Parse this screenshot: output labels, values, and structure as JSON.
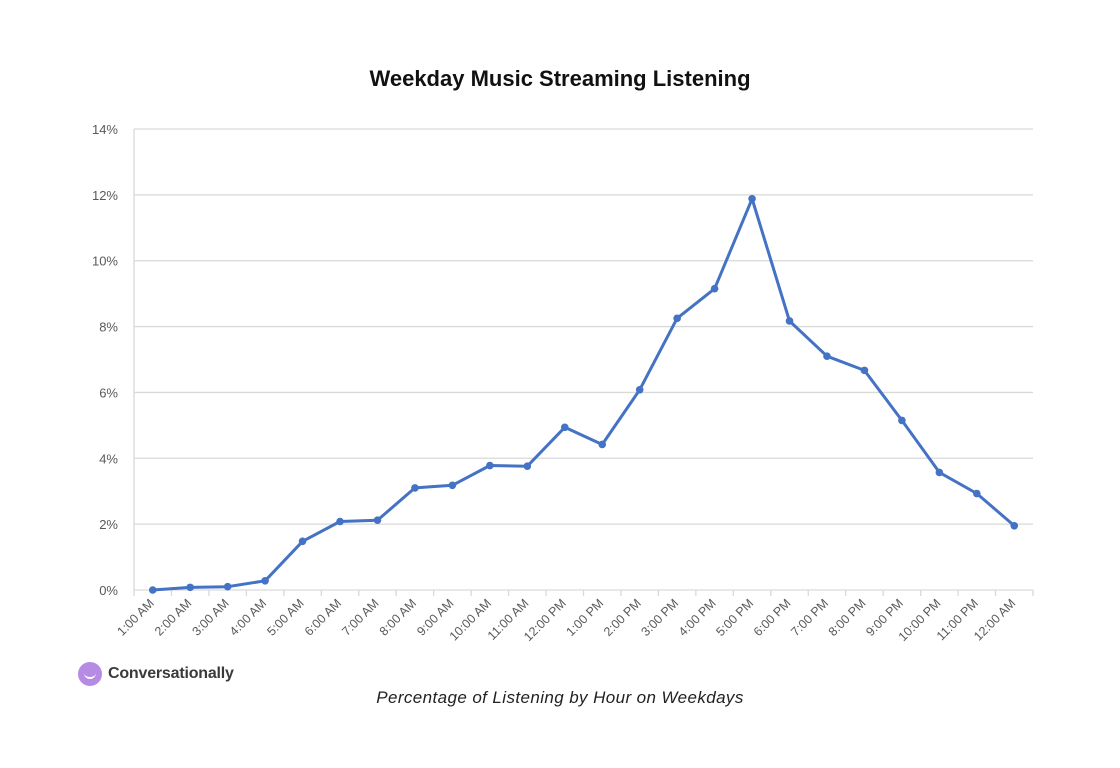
{
  "chart_data": {
    "type": "line",
    "title": "Weekday Music Streaming Listening",
    "caption": "Percentage of Listening by Hour on Weekdays",
    "categories": [
      "1:00 AM",
      "2:00 AM",
      "3:00 AM",
      "4:00 AM",
      "5:00 AM",
      "6:00 AM",
      "7:00 AM",
      "8:00 AM",
      "9:00 AM",
      "10:00 AM",
      "11:00 AM",
      "12:00 PM",
      "1:00 PM",
      "2:00 PM",
      "3:00 PM",
      "4:00 PM",
      "5:00 PM",
      "6:00 PM",
      "7:00 PM",
      "8:00 PM",
      "9:00 PM",
      "10:00 PM",
      "11:00 PM",
      "12:00 AM"
    ],
    "series": [
      {
        "values": [
          0.0,
          0.08,
          0.1,
          0.28,
          1.48,
          2.08,
          2.12,
          3.1,
          3.18,
          3.78,
          3.76,
          4.94,
          4.42,
          6.08,
          8.25,
          9.15,
          11.88,
          8.17,
          7.1,
          6.67,
          5.15,
          3.57,
          2.93,
          1.95
        ]
      }
    ],
    "ylim": [
      0,
      14
    ],
    "yticks": [
      "0%",
      "2%",
      "4%",
      "6%",
      "8%",
      "10%",
      "12%",
      "14%"
    ],
    "xlabel": "",
    "ylabel": "",
    "grid": true,
    "colors": {
      "line": "#4472c4",
      "grid": "#d9d9d9",
      "tick_text": "#595959"
    }
  },
  "brand": {
    "name": "Conversationally",
    "icon": "smile-icon"
  }
}
